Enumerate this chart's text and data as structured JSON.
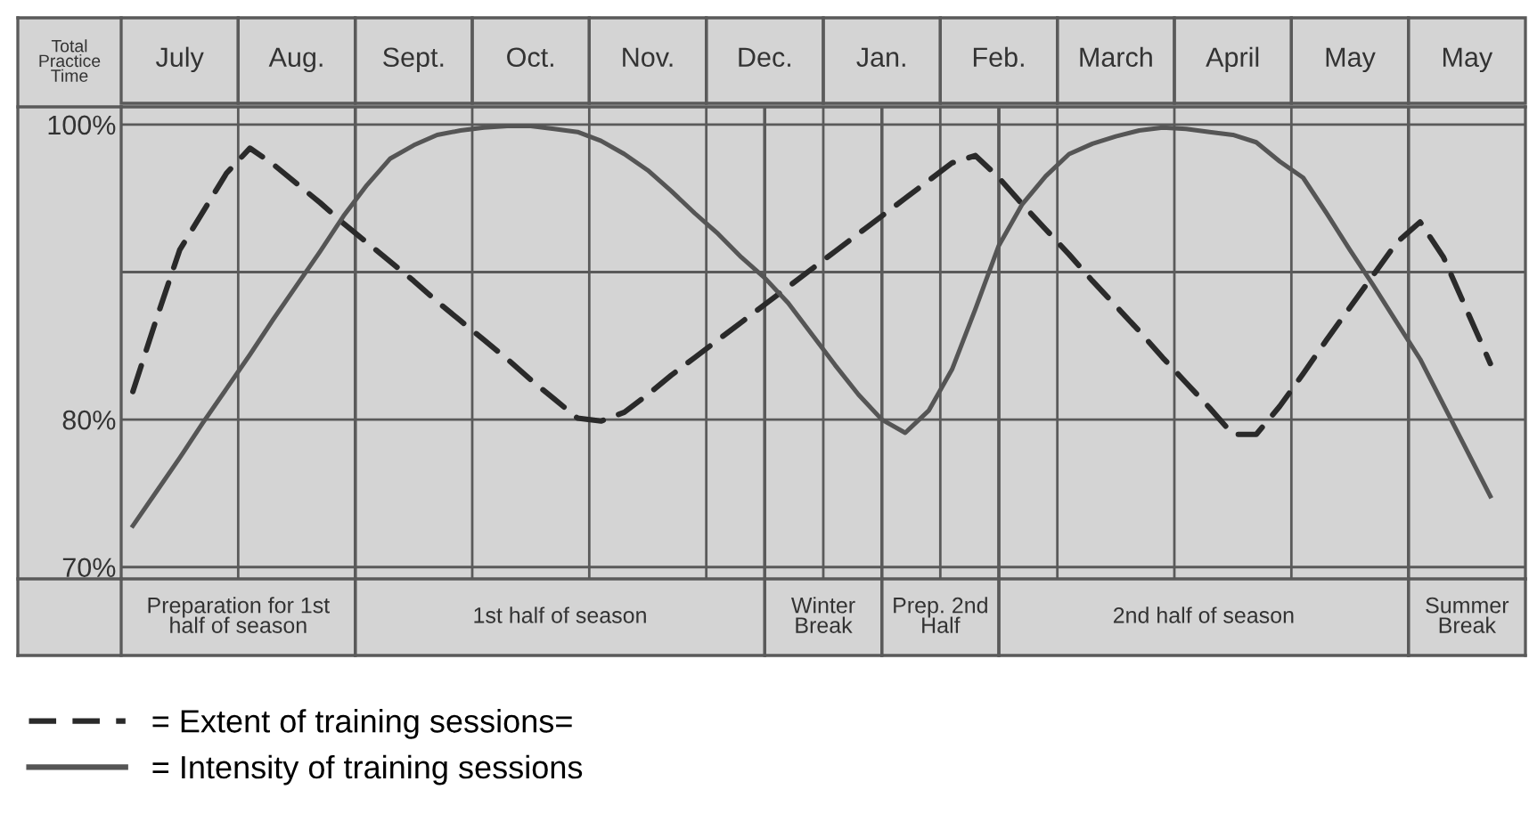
{
  "chart_data": {
    "type": "line",
    "ylabel": "Total Practice Time",
    "categories": [
      null,
      null,
      "July",
      null,
      null,
      null,
      null,
      "Aug.",
      null,
      null,
      null,
      null,
      "Sept.",
      null,
      null,
      null,
      null,
      "Oct.",
      null,
      null,
      null,
      null,
      "Nov.",
      null,
      null,
      null,
      null,
      "Dec.",
      null,
      null,
      null,
      null,
      "Jan.",
      null,
      null,
      null,
      null,
      "Feb.",
      null,
      null,
      null,
      null,
      "March",
      null,
      null,
      null,
      null,
      "April",
      null,
      null,
      null,
      null,
      "May",
      null,
      null,
      null,
      null,
      "May",
      null,
      null
    ],
    "ylim": [
      69.2,
      101.2
    ],
    "yticks": [
      {
        "value": 70,
        "label": "70%"
      },
      {
        "value": 80,
        "label": "80%"
      },
      {
        "value": 90,
        "label": null
      },
      {
        "value": 100,
        "label": "100%"
      }
    ],
    "grid": true,
    "legend": "bottom",
    "annotations": [
      "Preparation for 1st half of season",
      "1st half of season",
      "Winter Break",
      "Prep. 2nd Half",
      "2nd half of season",
      "Summer Break"
    ],
    "series": [
      {
        "name": "= Extent of training sessions=",
        "color": "#2a2a2a",
        "line_style": "dashed",
        "values": [
          81.9,
          86.8,
          91.5,
          94.1,
          96.7,
          98.4,
          97.3,
          96.0,
          94.7,
          93.3,
          92.0,
          90.7,
          89.4,
          88.0,
          86.7,
          85.4,
          84.1,
          82.7,
          81.4,
          80.1,
          79.9,
          80.5,
          81.7,
          83.0,
          84.2,
          85.4,
          86.6,
          87.8,
          89.0,
          90.2,
          91.4,
          92.6,
          93.8,
          95.0,
          96.2,
          97.4,
          97.9,
          96.4,
          94.6,
          92.9,
          91.2,
          89.4,
          87.7,
          86.0,
          84.2,
          82.5,
          80.8,
          79.0,
          79.0,
          80.9,
          83.1,
          85.4,
          87.6,
          89.8,
          92.0,
          93.4,
          91.0,
          87.4,
          83.8,
          null
        ]
      },
      {
        "name": "= Intensity of training sessions",
        "color": "#555555",
        "line_style": "solid",
        "values": [
          72.8,
          75.1,
          77.4,
          79.8,
          82.1,
          84.4,
          86.8,
          89.1,
          91.4,
          93.8,
          95.9,
          97.7,
          98.6,
          99.3,
          99.6,
          99.8,
          99.9,
          99.9,
          99.7,
          99.5,
          98.9,
          98.0,
          96.9,
          95.5,
          94.0,
          92.6,
          91.0,
          89.6,
          87.9,
          85.8,
          83.7,
          81.7,
          80.0,
          79.1,
          80.6,
          83.4,
          87.5,
          91.8,
          94.6,
          96.5,
          98.0,
          98.7,
          99.2,
          99.6,
          99.8,
          99.7,
          99.5,
          99.3,
          98.8,
          97.5,
          96.4,
          94.0,
          91.5,
          89.1,
          86.6,
          84.1,
          81.0,
          77.9,
          74.8,
          null
        ]
      }
    ]
  }
}
